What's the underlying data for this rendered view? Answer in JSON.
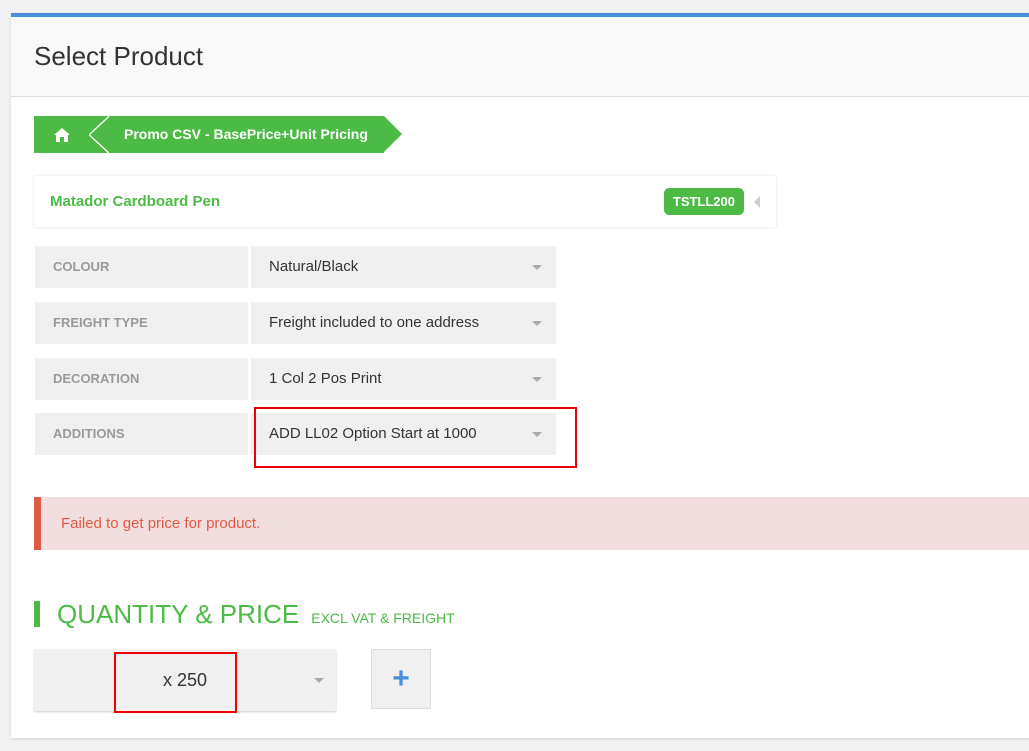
{
  "header": {
    "title": "Select Product"
  },
  "breadcrumb": {
    "home_icon": "home-icon",
    "label": "Promo CSV - BasePrice+Unit Pricing"
  },
  "product": {
    "name": "Matador Cardboard Pen",
    "code": "TSTLL200"
  },
  "options": [
    {
      "label": "COLOUR",
      "value": "Natural/Black"
    },
    {
      "label": "FREIGHT TYPE",
      "value": "Freight included to one address"
    },
    {
      "label": "DECORATION",
      "value": "1 Col 2 Pos Print"
    },
    {
      "label": "ADDITIONS",
      "value": "ADD LL02 Option Start at 1000"
    }
  ],
  "alert": {
    "message": "Failed to get price for product."
  },
  "quantity": {
    "title": "QUANTITY & PRICE",
    "subtitle": "EXCL VAT & FREIGHT",
    "value": "x 250",
    "add_label": "+"
  },
  "colors": {
    "accent": "#4cbb45",
    "top_bar": "#4a8fdd",
    "error": "#dd5a43",
    "highlight": "#ee0000"
  }
}
